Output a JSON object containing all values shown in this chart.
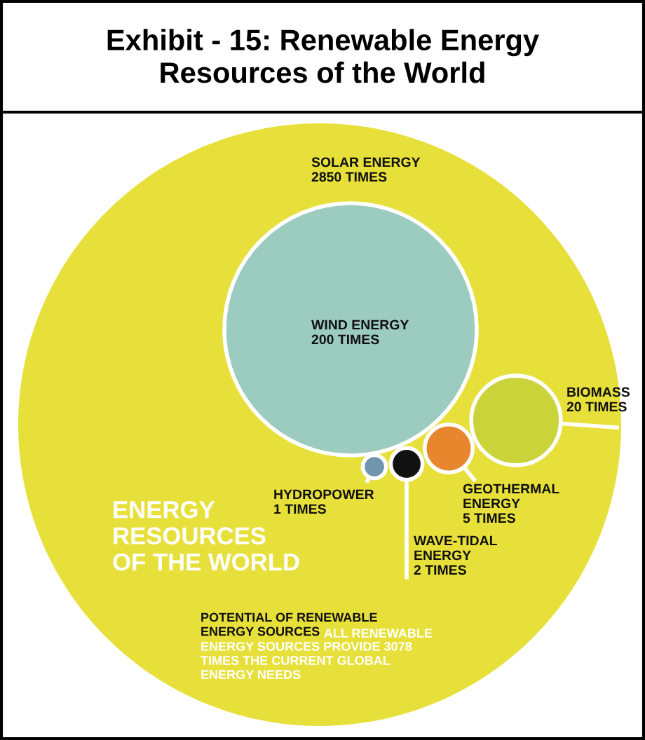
{
  "chart_data": {
    "type": "other",
    "title": "Exhibit - 15: Renewable Energy\nResources of the World",
    "categories": [
      "SOLAR ENERGY",
      "WIND ENERGY",
      "BIOMASS",
      "GEOTHERMAL\nENERGY",
      "WAVE-TIDAL\nENERGY",
      "HYDROPOWER"
    ],
    "values": [
      2850,
      200,
      20,
      5,
      2,
      1
    ],
    "value_labels": [
      "2850 TIMES",
      "200 TIMES",
      "20 TIMES",
      "5 TIMES",
      "2 TIMES",
      "1 TIMES"
    ],
    "colors": [
      "#e8e03a",
      "#9ccbbf",
      "#cbd33a",
      "#e8862e",
      "#111111",
      "#6f96ad"
    ],
    "annotations": [
      "ENERGY\nRESOURCES\nOF THE WORLD",
      "POTENTIAL OF RENEWABLE\nENERGY SOURCES",
      "ALL RENEWABLE\nENERGY SOURCES PROVIDE 3078\nTIMES THE CURRENT GLOBAL\nENERGY NEEDS"
    ]
  }
}
